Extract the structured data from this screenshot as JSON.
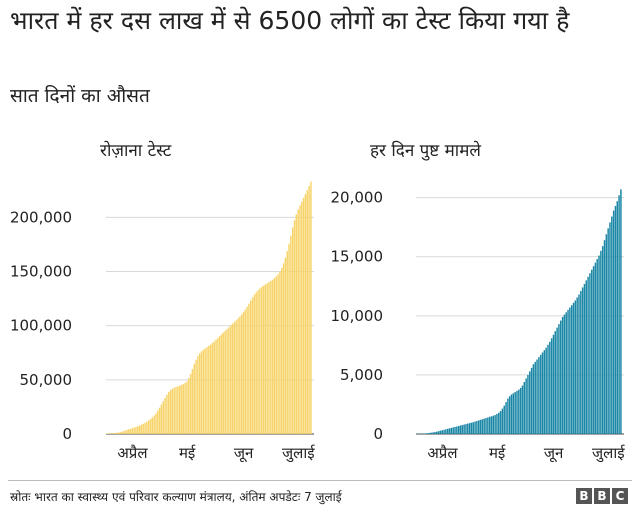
{
  "title": "भारत में हर दस लाख में से 6500 लोगों का टेस्ट किया गया है",
  "subtitle": "सात दिनों का औसत",
  "source": "स्रोतः भारत का स्वास्थ्य एवं परिवार कल्याण मंत्रालय, अंतिम अपडेटः 7 जुलाई",
  "logo_letters": [
    "B",
    "B",
    "C"
  ],
  "colors": {
    "tests": "#f7d46a",
    "cases": "#1b87a6",
    "grid": "#d9d9d9",
    "baseline": "#444444"
  },
  "chart_data": [
    {
      "type": "bar",
      "title": "रोज़ाना टेस्ट",
      "ylim": [
        0,
        240000
      ],
      "yticks": [
        0,
        50000,
        100000,
        150000,
        200000
      ],
      "ytick_labels": [
        "0",
        "50,000",
        "100,000",
        "150,000",
        "200,000"
      ],
      "xtick_labels": [
        {
          "label": "अप्रैल",
          "index": 14
        },
        {
          "label": "मई",
          "index": 44
        },
        {
          "label": "जून",
          "index": 75
        },
        {
          "label": "जुलाई",
          "index": 105
        }
      ],
      "series": [
        {
          "values": [
            500,
            600,
            700,
            800,
            900,
            1000,
            1200,
            1500,
            2000,
            2600,
            3200,
            3800,
            4300,
            4800,
            5300,
            5900,
            6500,
            7100,
            7800,
            8600,
            9500,
            10400,
            11400,
            12500,
            13800,
            15300,
            17000,
            19000,
            21500,
            24300,
            27300,
            30300,
            33300,
            36200,
            38600,
            40500,
            41800,
            42700,
            43400,
            44000,
            44600,
            45300,
            46100,
            47100,
            48600,
            51500,
            55500,
            60000,
            64500,
            68500,
            71800,
            74300,
            76200,
            77700,
            79000,
            80200,
            81400,
            82600,
            84000,
            85500,
            87100,
            88800,
            90500,
            92100,
            93700,
            95300,
            96900,
            98500,
            100100,
            101700,
            103300,
            104900,
            106600,
            108400,
            110300,
            112400,
            114800,
            117400,
            120200,
            123100,
            126000,
            128600,
            130800,
            132700,
            134300,
            135700,
            136900,
            138000,
            139100,
            140200,
            141300,
            142500,
            143800,
            145400,
            147400,
            150000,
            153400,
            157600,
            162800,
            168800,
            175600,
            183100,
            190700,
            197300,
            202700,
            207200,
            211000,
            214500,
            218000,
            221500,
            225000,
            229000,
            233000
          ]
        }
      ]
    },
    {
      "type": "bar",
      "title": "हर दिन पुष्ट मामले",
      "ylim": [
        0,
        22000
      ],
      "yticks": [
        0,
        5000,
        10000,
        15000,
        20000
      ],
      "ytick_labels": [
        "0",
        "5,000",
        "10,000",
        "15,000",
        "20,000"
      ],
      "xtick_labels": [
        {
          "label": "अप्रैल",
          "index": 14
        },
        {
          "label": "मई",
          "index": 44
        },
        {
          "label": "जून",
          "index": 75
        },
        {
          "label": "जुलाई",
          "index": 105
        }
      ],
      "series": [
        {
          "values": [
            20,
            25,
            30,
            35,
            45,
            55,
            70,
            90,
            110,
            140,
            170,
            200,
            240,
            280,
            320,
            360,
            400,
            440,
            480,
            520,
            560,
            600,
            640,
            680,
            720,
            760,
            800,
            840,
            880,
            920,
            960,
            1000,
            1050,
            1100,
            1150,
            1200,
            1250,
            1300,
            1350,
            1400,
            1450,
            1500,
            1550,
            1600,
            1700,
            1800,
            1950,
            2150,
            2400,
            2700,
            3000,
            3200,
            3350,
            3450,
            3550,
            3650,
            3750,
            3900,
            4100,
            4400,
            4700,
            5000,
            5300,
            5600,
            5900,
            6100,
            6300,
            6500,
            6700,
            6900,
            7100,
            7300,
            7550,
            7800,
            8100,
            8400,
            8700,
            9000,
            9300,
            9600,
            9900,
            10100,
            10300,
            10500,
            10700,
            10900,
            11100,
            11300,
            11550,
            11800,
            12100,
            12400,
            12700,
            13000,
            13300,
            13600,
            13900,
            14200,
            14500,
            14800,
            15100,
            15500,
            15900,
            16400,
            16900,
            17400,
            17900,
            18400,
            18900,
            19300,
            19700,
            20200,
            20700
          ]
        }
      ]
    }
  ]
}
